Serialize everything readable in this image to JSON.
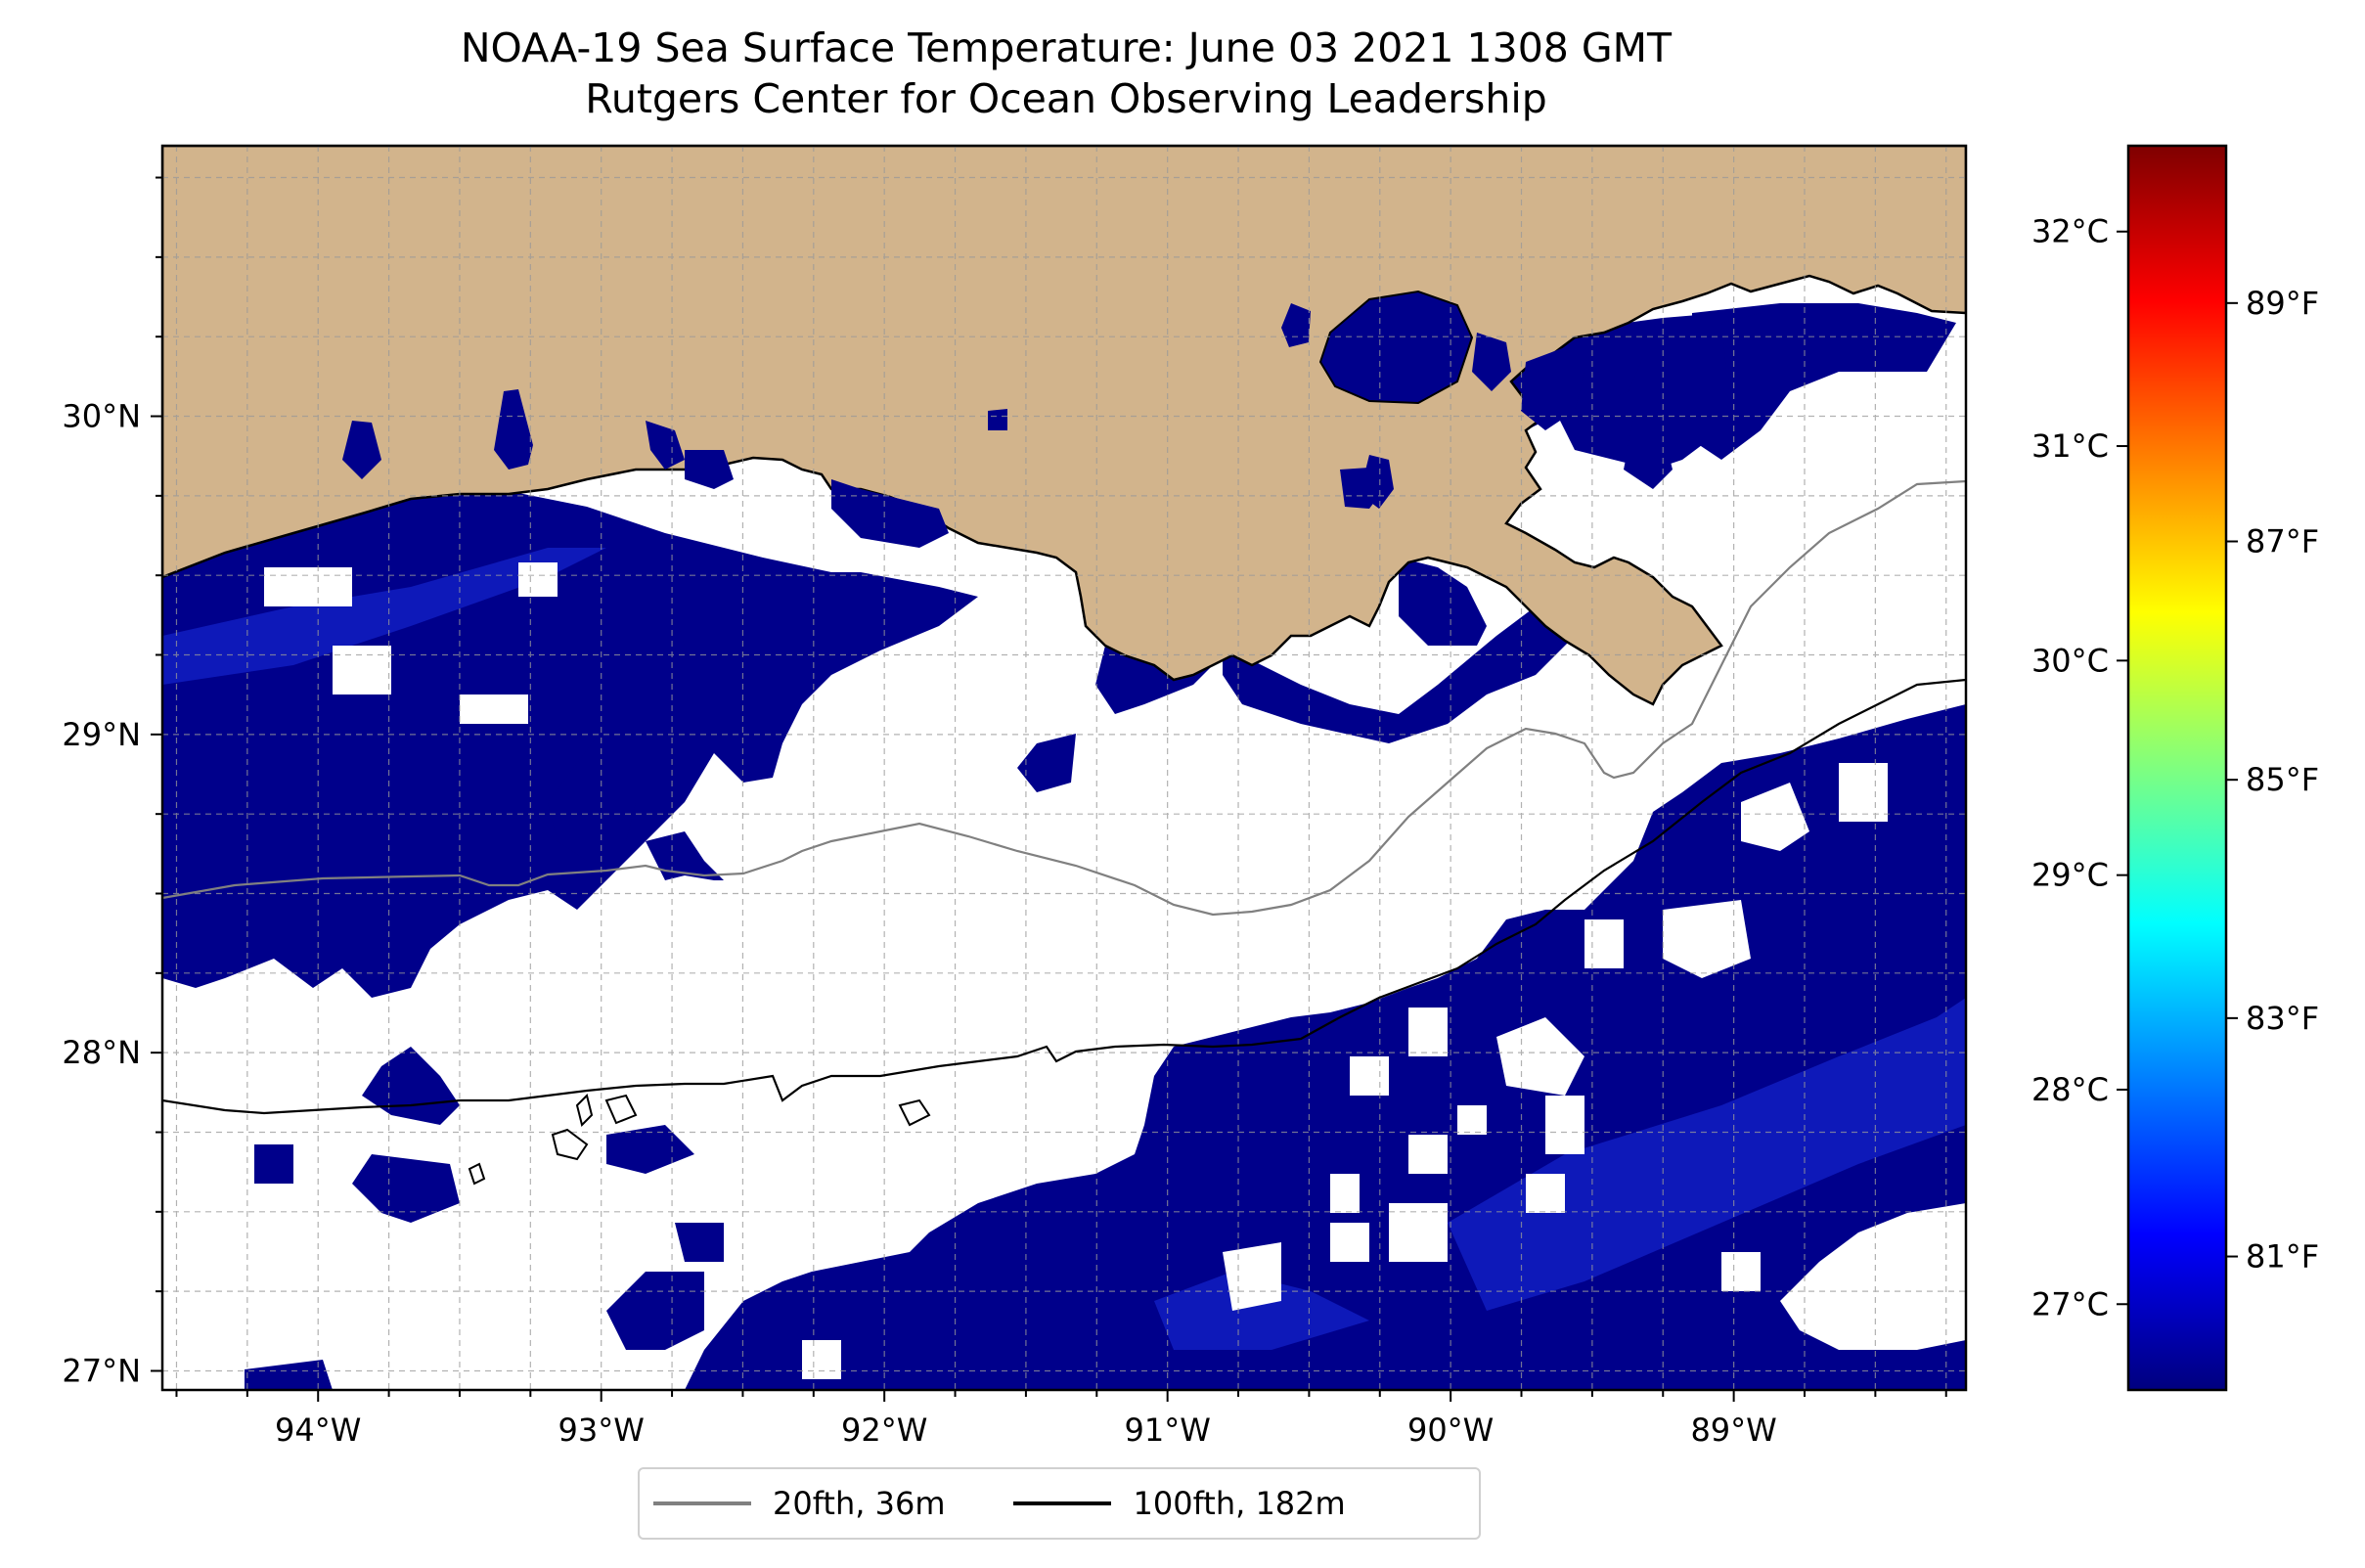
{
  "title": {
    "line1": "NOAA-19 Sea Surface Temperature: June 03 2021 1308 GMT",
    "line2": "Rutgers Center for Ocean Observing Leadership"
  },
  "map": {
    "lon_range": [
      -94.55,
      -88.18
    ],
    "lat_range": [
      26.94,
      30.85
    ],
    "lon_ticks": [
      -94,
      -93,
      -92,
      -91,
      -90,
      -89
    ],
    "lon_labels": [
      "94°W",
      "93°W",
      "92°W",
      "91°W",
      "90°W",
      "89°W"
    ],
    "lat_ticks": [
      27,
      28,
      29,
      30
    ],
    "lat_labels": [
      "27°N",
      "28°N",
      "29°N",
      "30°N"
    ],
    "gridlines": true,
    "land_color": "#d2b48c",
    "cloud_color": "#ffffff",
    "sst_color_dominant": "#00008b",
    "sst_color_warmer": "#1a2ee0"
  },
  "colorbar": {
    "colormap": "jet",
    "celsius_ticks": [
      27,
      28,
      29,
      30,
      31,
      32
    ],
    "celsius_labels": [
      "27°C",
      "28°C",
      "29°C",
      "30°C",
      "31°C",
      "32°C"
    ],
    "fahrenheit_ticks": [
      81,
      83,
      85,
      87,
      89
    ],
    "fahrenheit_labels": [
      "81°F",
      "83°F",
      "85°F",
      "87°F",
      "89°F"
    ],
    "range_c": [
      26.6,
      32.4
    ],
    "colors": [
      "#00007f",
      "#0000ff",
      "#007fff",
      "#00ffff",
      "#7fff7f",
      "#ffff00",
      "#ff7f00",
      "#ff0000",
      "#7f0000"
    ]
  },
  "legend": {
    "items": [
      {
        "label": "20fth, 36m",
        "color": "#808080"
      },
      {
        "label": "100fth, 182m",
        "color": "#000000"
      }
    ],
    "placement": "bottom-center"
  }
}
